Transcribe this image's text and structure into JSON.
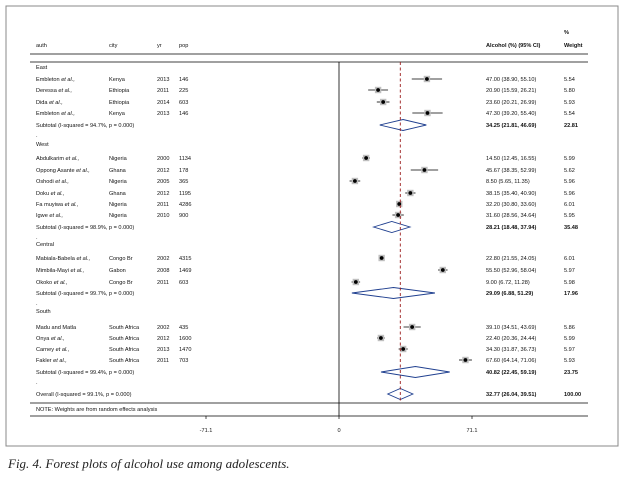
{
  "chart_data": {
    "type": "forest",
    "columns": {
      "author": "auth",
      "city": "city",
      "year": "yr",
      "population": "pop",
      "effect": "Alcohol (%) (95% CI)",
      "weight_pct": "%",
      "weight": "Weight"
    },
    "x_axis": {
      "ticks": [
        "-71.1",
        "0",
        "71.1"
      ],
      "tick_values": [
        -71.1,
        0,
        71.1
      ]
    },
    "overall_line_value": 32.77,
    "groups": [
      {
        "name": "East",
        "studies": [
          {
            "author": "Embleton",
            "etal": "et al.,",
            "city": "Kenya",
            "year": "2013",
            "pop": "146",
            "est": 47.0,
            "lo": 38.9,
            "hi": 55.1,
            "ci_text": "47.00 (38.90, 55.10)",
            "weight": "5.54"
          },
          {
            "author": "Deressa",
            "etal": "et al.,",
            "city": "Ethiopia",
            "year": "2011",
            "pop": "225",
            "est": 20.9,
            "lo": 15.59,
            "hi": 26.21,
            "ci_text": "20.90 (15.59, 26.21)",
            "weight": "5.80"
          },
          {
            "author": "Dida",
            "etal": "et al.,",
            "city": "Ethiopia",
            "year": "2014",
            "pop": "603",
            "est": 23.6,
            "lo": 20.21,
            "hi": 26.99,
            "ci_text": "23.60 (20.21, 26.99)",
            "weight": "5.93"
          },
          {
            "author": "Embleton",
            "etal": "et al.,",
            "city": "Kenya",
            "year": "2013",
            "pop": "146",
            "est": 47.3,
            "lo": 39.2,
            "hi": 55.4,
            "ci_text": "47.30 (39.20, 55.40)",
            "weight": "5.54"
          }
        ],
        "subtotal": {
          "label": "Subtotal  (I-squared = 94.7%, p = 0.000)",
          "est": 34.25,
          "lo": 21.81,
          "hi": 46.69,
          "ci_text": "34.25 (21.81, 46.69)",
          "weight": "22.81"
        }
      },
      {
        "name": "West",
        "studies": [
          {
            "author": "Abdulkarim",
            "etal": "et al.,",
            "city": "Nigeria",
            "year": "2000",
            "pop": "1134",
            "est": 14.5,
            "lo": 12.45,
            "hi": 16.55,
            "ci_text": "14.50 (12.45, 16.55)",
            "weight": "5.99"
          },
          {
            "author": "Oppong Asante",
            "etal": "et al.,",
            "city": "Ghana",
            "year": "2012",
            "pop": "178",
            "est": 45.67,
            "lo": 38.35,
            "hi": 52.99,
            "ci_text": "45.67 (38.35, 52.99)",
            "weight": "5.62"
          },
          {
            "author": "Oshodi",
            "etal": "et al.,",
            "city": "Nigeria",
            "year": "2005",
            "pop": "365",
            "est": 8.5,
            "lo": 5.65,
            "hi": 11.35,
            "ci_text": "8.50 (5.65, 11.35)",
            "weight": "5.96"
          },
          {
            "author": "Doku",
            "etal": "et al.,",
            "city": "Ghana",
            "year": "2012",
            "pop": "1195",
            "est": 38.15,
            "lo": 35.4,
            "hi": 40.9,
            "ci_text": "38.15 (35.40, 40.90)",
            "weight": "5.96"
          },
          {
            "author": "Fa muyiwa",
            "etal": "et al.,",
            "city": "Nigeria",
            "year": "2011",
            "pop": "4286",
            "est": 32.2,
            "lo": 30.8,
            "hi": 33.6,
            "ci_text": "32.20 (30.80, 33.60)",
            "weight": "6.01"
          },
          {
            "author": "Igwe",
            "etal": "et al.,",
            "city": "Nigeria",
            "year": "2010",
            "pop": "900",
            "est": 31.6,
            "lo": 28.56,
            "hi": 34.64,
            "ci_text": "31.60 (28.56, 34.64)",
            "weight": "5.95"
          }
        ],
        "subtotal": {
          "label": "Subtotal  (I-squared = 98.9%, p = 0.000)",
          "est": 28.21,
          "lo": 18.48,
          "hi": 37.94,
          "ci_text": "28.21 (18.48, 37.94)",
          "weight": "35.48"
        }
      },
      {
        "name": "Central",
        "studies": [
          {
            "author": "Mabiala-Babela",
            "etal": "et al.,",
            "city": "Congo Br",
            "year": "2002",
            "pop": "4315",
            "est": 22.8,
            "lo": 21.55,
            "hi": 24.05,
            "ci_text": "22.80 (21.55, 24.05)",
            "weight": "6.01"
          },
          {
            "author": "Mimbila-Mayi",
            "etal": "et al.,",
            "city": "Gabon",
            "year": "2008",
            "pop": "1469",
            "est": 55.5,
            "lo": 52.96,
            "hi": 58.04,
            "ci_text": "55.50 (52.96, 58.04)",
            "weight": "5.97"
          },
          {
            "author": "Okoko",
            "etal": "et al.,",
            "city": "Congo Br",
            "year": "2011",
            "pop": "603",
            "est": 9.0,
            "lo": 6.72,
            "hi": 11.28,
            "ci_text": "9.00 (6.72, 11.28)",
            "weight": "5.98"
          }
        ],
        "subtotal": {
          "label": "Subtotal  (I-squared = 99.7%, p = 0.000)",
          "est": 29.09,
          "lo": 6.88,
          "hi": 51.29,
          "ci_text": "29.09 (6.88, 51.29)",
          "weight": "17.96"
        }
      },
      {
        "name": "South",
        "studies": [
          {
            "author": "Madu and Matla",
            "etal": "",
            "city": "South Africa",
            "year": "2002",
            "pop": "435",
            "est": 39.1,
            "lo": 34.51,
            "hi": 43.69,
            "ci_text": "39.10 (34.51, 43.69)",
            "weight": "5.86"
          },
          {
            "author": "Onya",
            "etal": "et al.,",
            "city": "South Africa",
            "year": "2012",
            "pop": "1600",
            "est": 22.4,
            "lo": 20.36,
            "hi": 24.44,
            "ci_text": "22.40 (20.36, 24.44)",
            "weight": "5.99"
          },
          {
            "author": "Carney",
            "etal": "et al.,",
            "city": "South Africa",
            "year": "2013",
            "pop": "1470",
            "est": 34.3,
            "lo": 31.87,
            "hi": 36.73,
            "ci_text": "34.30 (31.87, 36.73)",
            "weight": "5.97"
          },
          {
            "author": "Fakler",
            "etal": "et al.,",
            "city": "South Africa",
            "year": "2011",
            "pop": "703",
            "est": 67.6,
            "lo": 64.14,
            "hi": 71.06,
            "ci_text": "67.60 (64.14, 71.06)",
            "weight": "5.93"
          }
        ],
        "subtotal": {
          "label": "Subtotal  (I-squared = 99.4%, p = 0.000)",
          "est": 40.82,
          "lo": 22.45,
          "hi": 59.19,
          "ci_text": "40.82 (22.45, 59.19)",
          "weight": "23.75"
        }
      }
    ],
    "overall": {
      "label": "Overall  (I-squared = 99.1%, p = 0.000)",
      "est": 32.77,
      "lo": 26.04,
      "hi": 39.51,
      "ci_text": "32.77 (26.04, 39.51)",
      "weight": "100.00"
    },
    "note": "NOTE: Weights are from random effects analysis"
  },
  "caption": "Fig. 4. Forest plots of alcohol use among adolescents.",
  "colors": {
    "line": "#000000",
    "dashed": "#9b1c1c",
    "frame": "#888888"
  }
}
